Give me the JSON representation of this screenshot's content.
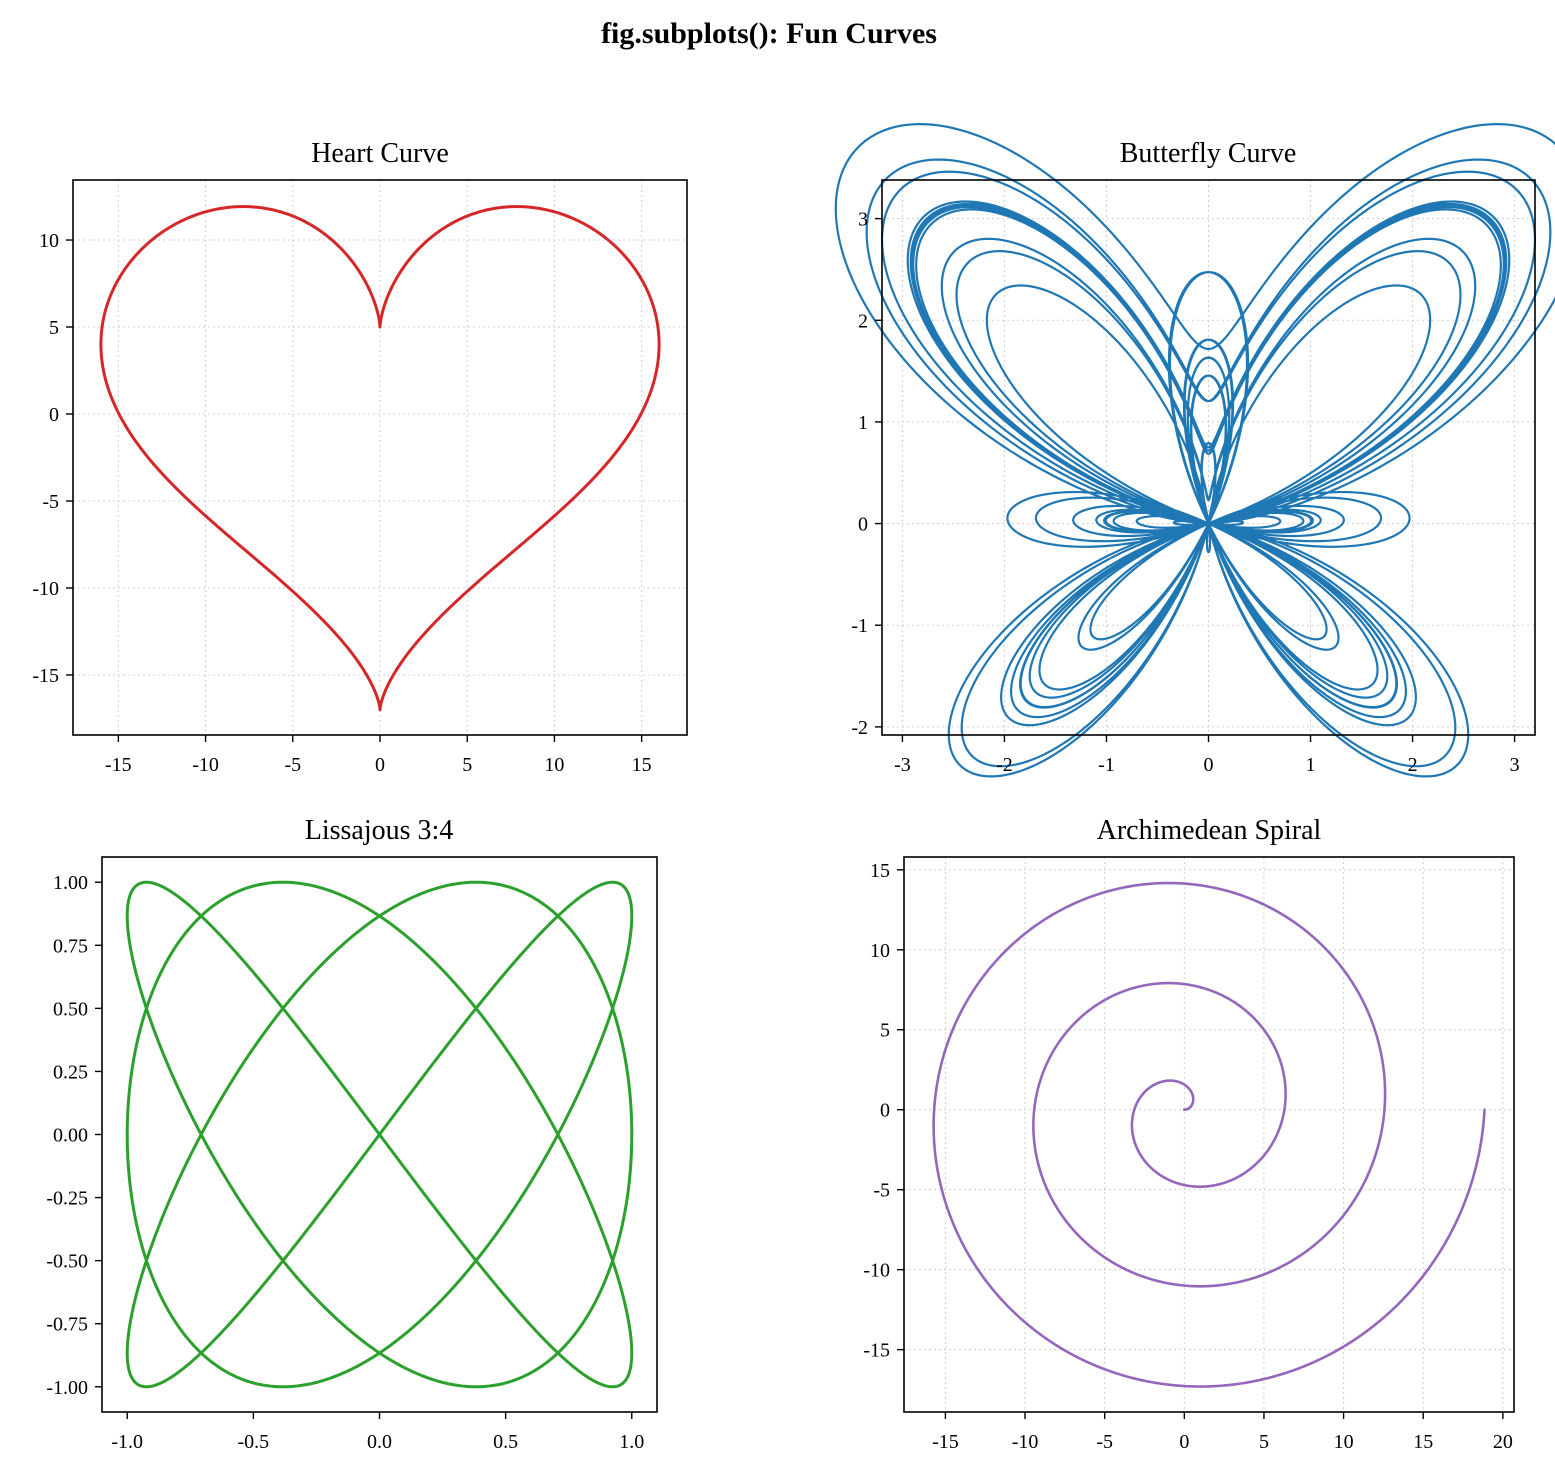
{
  "figure": {
    "title": "fig.subplots(): Fun Curves"
  },
  "chart_data": [
    {
      "type": "line",
      "title": "Heart Curve",
      "xlabel": "",
      "ylabel": "",
      "curve": "heart",
      "equation": {
        "x": "16 sin^3 t",
        "y": "13 cos t - 5 cos 2t - 2 cos 3t - cos 4t",
        "t_range": [
          0,
          6.283185
        ]
      },
      "color": "#d62728",
      "line_width": 3,
      "xlim": [
        -17.6,
        17.6
      ],
      "ylim": [
        -18.45,
        13.45
      ],
      "xticks": [
        -15,
        -10,
        -5,
        0,
        5,
        10,
        15
      ],
      "yticks": [
        10,
        5,
        0,
        -5,
        -10,
        -15
      ],
      "grid": true
    },
    {
      "type": "line",
      "title": "Butterfly Curve",
      "xlabel": "",
      "ylabel": "",
      "curve": "butterfly",
      "equation": {
        "x": "sin t (e^cos t - 2 cos 4t - sin^5(t/12))",
        "y": "cos t (e^cos t - 2 cos 4t - sin^5(t/12))",
        "t_range": [
          0,
          75.398224
        ]
      },
      "color": "#1f77b4",
      "line_width": 2.2,
      "xlim": [
        -3.2,
        3.2
      ],
      "ylim": [
        -2.08,
        3.38
      ],
      "xticks": [
        -3,
        -2,
        -1,
        0,
        1,
        2,
        3
      ],
      "yticks": [
        3,
        2,
        1,
        0,
        -1,
        -2
      ],
      "grid": true
    },
    {
      "type": "line",
      "title": "Lissajous 3:4",
      "xlabel": "",
      "ylabel": "",
      "curve": "lissajous",
      "equation": {
        "x": "sin 3t",
        "y": "sin 4t",
        "t_range": [
          0,
          6.283185
        ]
      },
      "color": "#2ca02c",
      "line_width": 3,
      "xlim": [
        -1.1,
        1.1
      ],
      "ylim": [
        -1.1,
        1.1
      ],
      "xticks": [
        -1.0,
        -0.5,
        0.0,
        0.5,
        1.0
      ],
      "xticklabels": [
        "-1.0",
        "-0.5",
        "0.0",
        "0.5",
        "1.0"
      ],
      "yticks": [
        1.0,
        0.75,
        0.5,
        0.25,
        0.0,
        -0.25,
        -0.5,
        -0.75,
        -1.0
      ],
      "yticklabels": [
        "1.00",
        "0.75",
        "0.50",
        "0.25",
        "0.00",
        "-0.25",
        "-0.50",
        "-0.75",
        "-1.00"
      ],
      "grid": false
    },
    {
      "type": "line",
      "title": "Archimedean Spiral",
      "xlabel": "",
      "ylabel": "",
      "curve": "archimedean",
      "equation": {
        "r": "t",
        "t_range": [
          0,
          18.849556
        ]
      },
      "color": "#9467bd",
      "line_width": 2.6,
      "xlim": [
        -17.6,
        20.7
      ],
      "ylim": [
        -18.9,
        15.8
      ],
      "xticks": [
        -15,
        -10,
        -5,
        0,
        5,
        10,
        15,
        20
      ],
      "yticks": [
        15,
        10,
        5,
        0,
        -5,
        -10,
        -15
      ],
      "grid": true
    }
  ]
}
